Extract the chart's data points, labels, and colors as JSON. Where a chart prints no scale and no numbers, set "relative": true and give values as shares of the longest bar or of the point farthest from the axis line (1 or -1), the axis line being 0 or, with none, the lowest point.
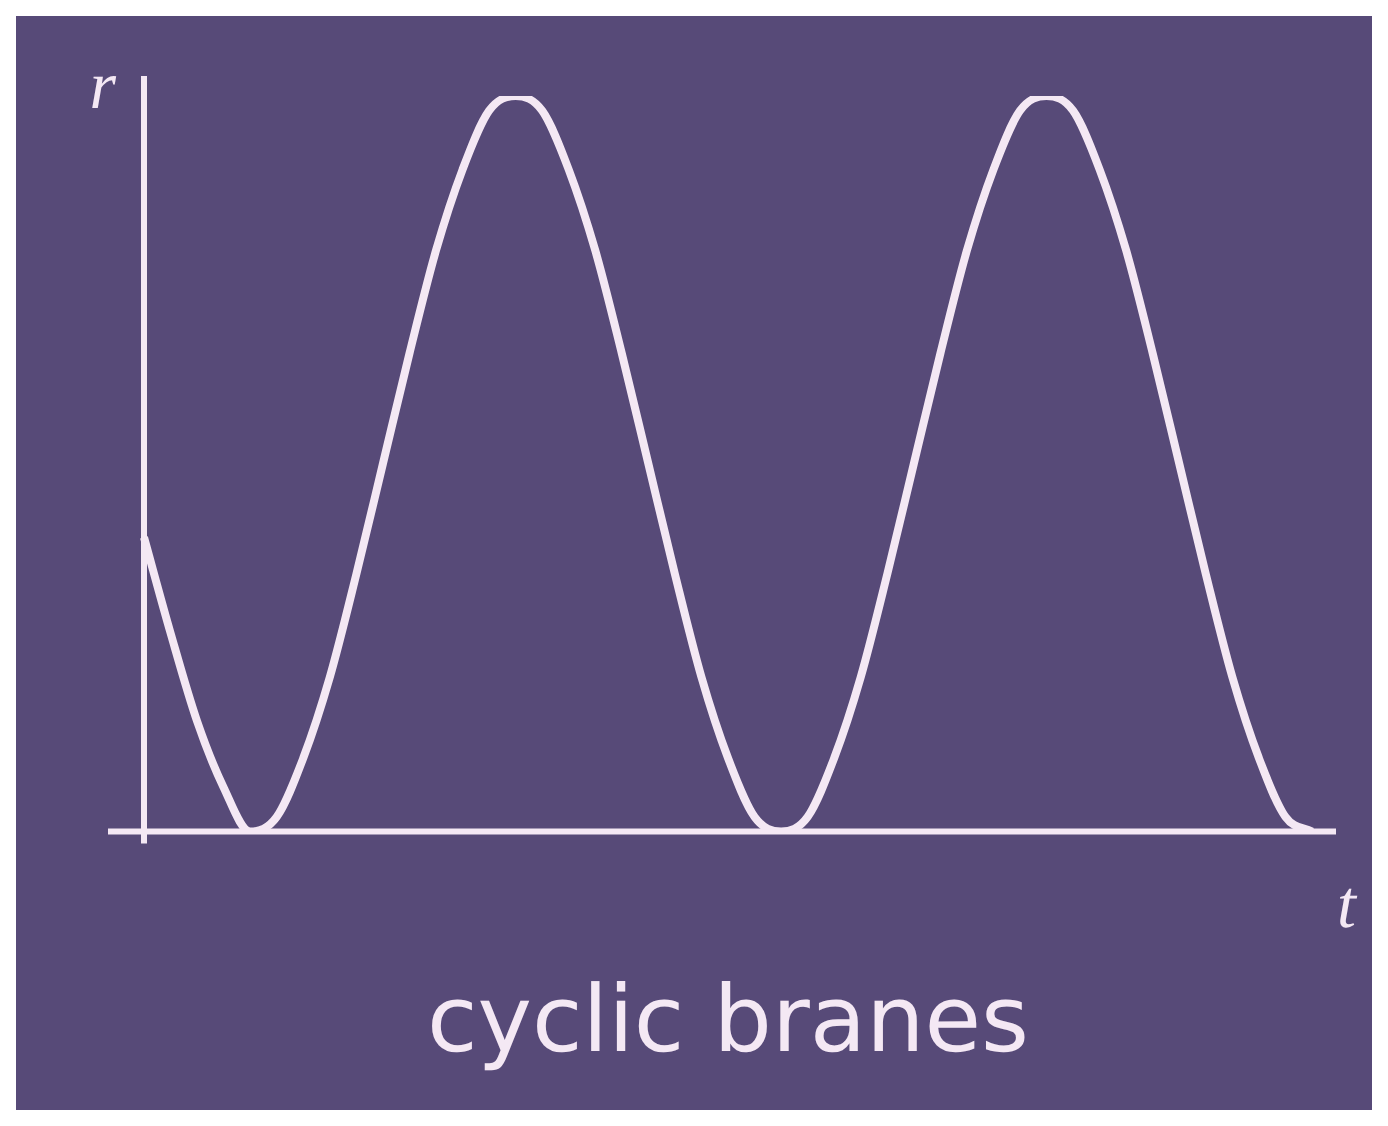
{
  "chart_data": {
    "type": "line",
    "title": "cyclic branes",
    "xlabel": "t",
    "ylabel": "r",
    "relative": true,
    "legend": false,
    "marker": "none",
    "line_style": "solid",
    "categories": [
      null,
      null,
      null,
      null,
      null,
      null,
      null,
      null,
      null,
      null,
      null,
      null,
      null,
      null,
      null,
      null,
      null,
      null,
      null,
      null,
      null,
      null,
      null,
      null,
      null,
      null,
      null,
      null,
      null,
      null,
      null,
      null,
      null,
      null,
      null,
      null,
      null,
      null,
      null,
      null,
      null,
      null,
      null,
      null,
      null
    ],
    "series": [
      {
        "color": "#f4e8f4",
        "values": [
          0.4,
          0.27,
          0.15,
          0.06,
          0,
          0.02,
          0.1,
          0.21,
          0.35,
          0.5,
          0.65,
          0.79,
          0.9,
          0.98,
          1,
          0.98,
          0.9,
          0.79,
          0.65,
          0.5,
          0.35,
          0.21,
          0.1,
          0.02,
          0,
          0.02,
          0.1,
          0.21,
          0.35,
          0.5,
          0.65,
          0.79,
          0.9,
          0.98,
          1,
          0.98,
          0.9,
          0.79,
          0.65,
          0.5,
          0.35,
          0.21,
          0.1,
          0.02,
          0
        ]
      }
    ]
  }
}
